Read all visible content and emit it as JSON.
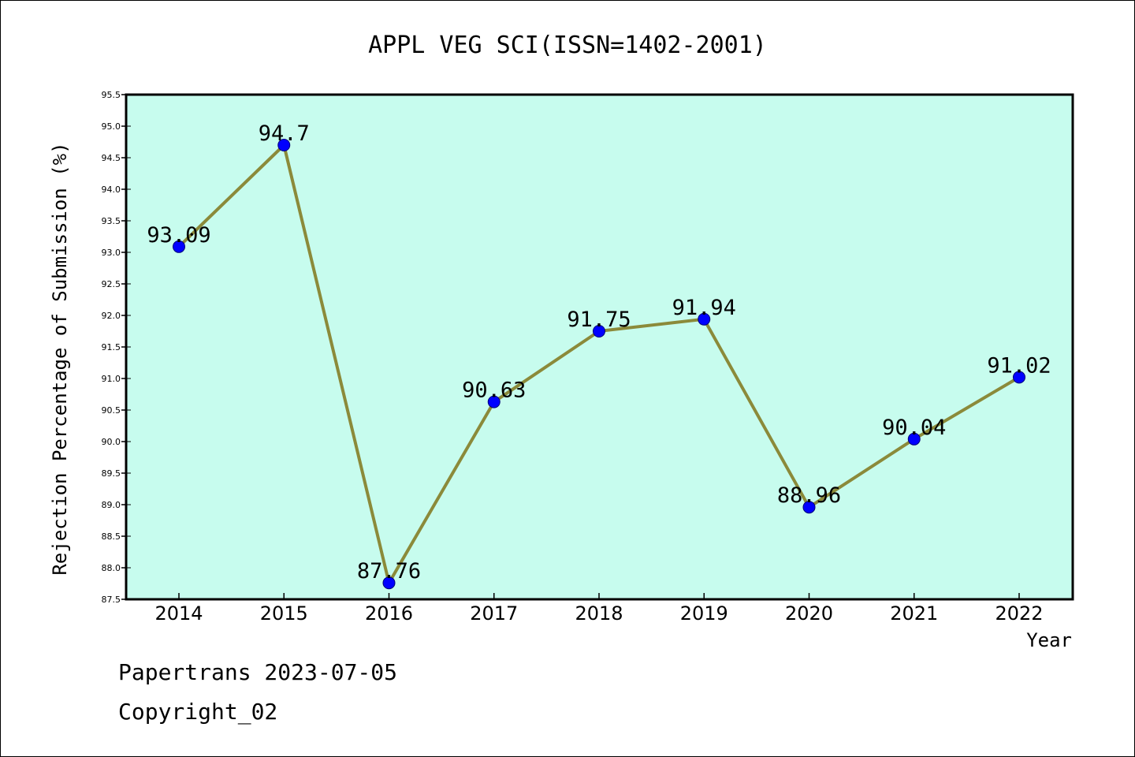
{
  "chart_data": {
    "type": "line",
    "title": "APPL VEG SCI(ISSN=1402-2001)",
    "xlabel": "Year",
    "ylabel": "Rejection Percentage of Submission (%)",
    "categories": [
      "2014",
      "2015",
      "2016",
      "2017",
      "2018",
      "2019",
      "2020",
      "2021",
      "2022"
    ],
    "values": [
      93.09,
      94.7,
      87.76,
      90.63,
      91.75,
      91.94,
      88.96,
      90.04,
      91.02
    ],
    "data_labels": [
      "93.09",
      "94.7",
      "87.76",
      "90.63",
      "91.75",
      "91.94",
      "88.96",
      "90.04",
      "91.02"
    ],
    "ylim": [
      87.5,
      95.5
    ],
    "yticks": [
      "87.5",
      "88.0",
      "88.5",
      "89.0",
      "89.5",
      "90.0",
      "90.5",
      "91.0",
      "91.5",
      "92.0",
      "92.5",
      "93.0",
      "93.5",
      "94.0",
      "94.5",
      "95.0",
      "95.5"
    ],
    "grid": false,
    "colors": {
      "plot_background": "#c7fcee",
      "line": "#8b8a3a",
      "marker": "#0000ff"
    }
  },
  "footer": {
    "line1": "Papertrans 2023-07-05",
    "line2": "Copyright_02"
  }
}
